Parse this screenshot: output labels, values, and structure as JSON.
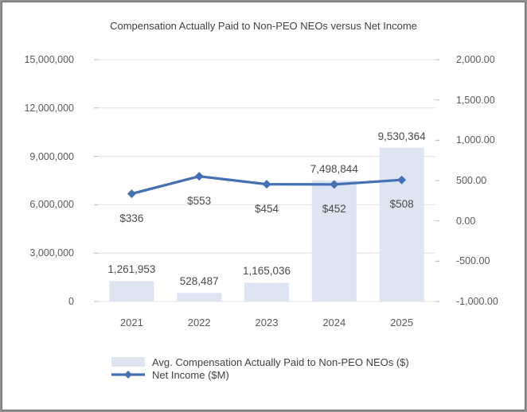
{
  "frame": {
    "background": "#ffffff",
    "border_outer": "#919191",
    "border_inner": "#6d6d6d"
  },
  "chart_data": {
    "type": "combo-bar-line",
    "title": "Compensation Actually Paid to Non-PEO NEOs versus Net Income",
    "categories": [
      "2021",
      "2022",
      "2023",
      "2024",
      "2025"
    ],
    "series": [
      {
        "name": "Avg. Compensation Actually Paid to Non-PEO NEOs ($)",
        "type": "bar",
        "axis": "left",
        "color": "#dde5f3",
        "values": [
          1261953,
          528487,
          1165036,
          7498844,
          9530364
        ],
        "data_labels": [
          "1,261,953",
          "528,487",
          "1,165,036",
          "7,498,844",
          "9,530,364"
        ]
      },
      {
        "name": "Net Income ($M)",
        "type": "line",
        "axis": "right",
        "color": "#4470b4",
        "marker": "diamond",
        "values": [
          336,
          553,
          454,
          452,
          508
        ],
        "data_labels": [
          "$336",
          "$553",
          "$454",
          "$452",
          "$508"
        ]
      }
    ],
    "left_axis": {
      "min": 0,
      "max": 15000000,
      "step": 3000000,
      "tick_labels": [
        "0",
        "3,000,000",
        "6,000,000",
        "9,000,000",
        "12,000,000",
        "15,000,000"
      ]
    },
    "right_axis": {
      "min": -1000,
      "max": 2000,
      "step": 500,
      "tick_labels": [
        "-1,000.00",
        "-500.00",
        "0.00",
        "500.00",
        "1,000.00",
        "1,500.00",
        "2,000.00"
      ]
    },
    "grid": "horizontal",
    "legend_position": "bottom-left",
    "colors": {
      "gridline": "#e0e0e0",
      "tick_mark": "#b7b7b7",
      "tick_text": "#595959",
      "label_text": "#4a4a4a",
      "title_text": "#404040",
      "legend_text": "#404040"
    }
  }
}
